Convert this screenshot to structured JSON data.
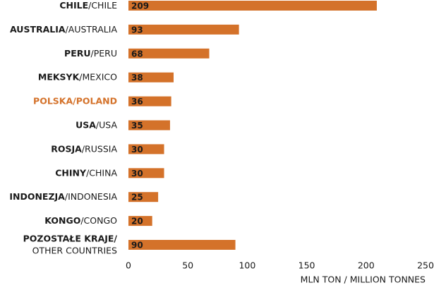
{
  "chart_data": {
    "type": "bar",
    "orientation": "horizontal",
    "categories": [
      [
        "CHILE",
        "/CHILE"
      ],
      [
        "AUSTRALIA",
        "/AUSTRALIA"
      ],
      [
        "PERU",
        "/PERU"
      ],
      [
        "MEKSYK",
        "/MEXICO"
      ],
      [
        "POLSKA/POLAND",
        ""
      ],
      [
        "USA",
        "/USA"
      ],
      [
        "ROSJA",
        "/RUSSIA"
      ],
      [
        "CHINY",
        "/CHINA"
      ],
      [
        "INDONEZJA",
        "/INDONESIA"
      ],
      [
        "KONGO",
        "/CONGO"
      ],
      [
        "POZOSTAŁE KRAJE/",
        "OTHER COUNTRIES"
      ]
    ],
    "values": [
      209,
      93,
      68,
      38,
      36,
      35,
      30,
      30,
      25,
      20,
      90
    ],
    "color": "#d4722a",
    "highlight_index": 4,
    "highlight_color": "#d4722a",
    "xlim": [
      0,
      250
    ],
    "xticks": [
      0,
      50,
      100,
      150,
      200,
      250
    ],
    "xlabel": "MLN TON / MILLION TONNES"
  }
}
